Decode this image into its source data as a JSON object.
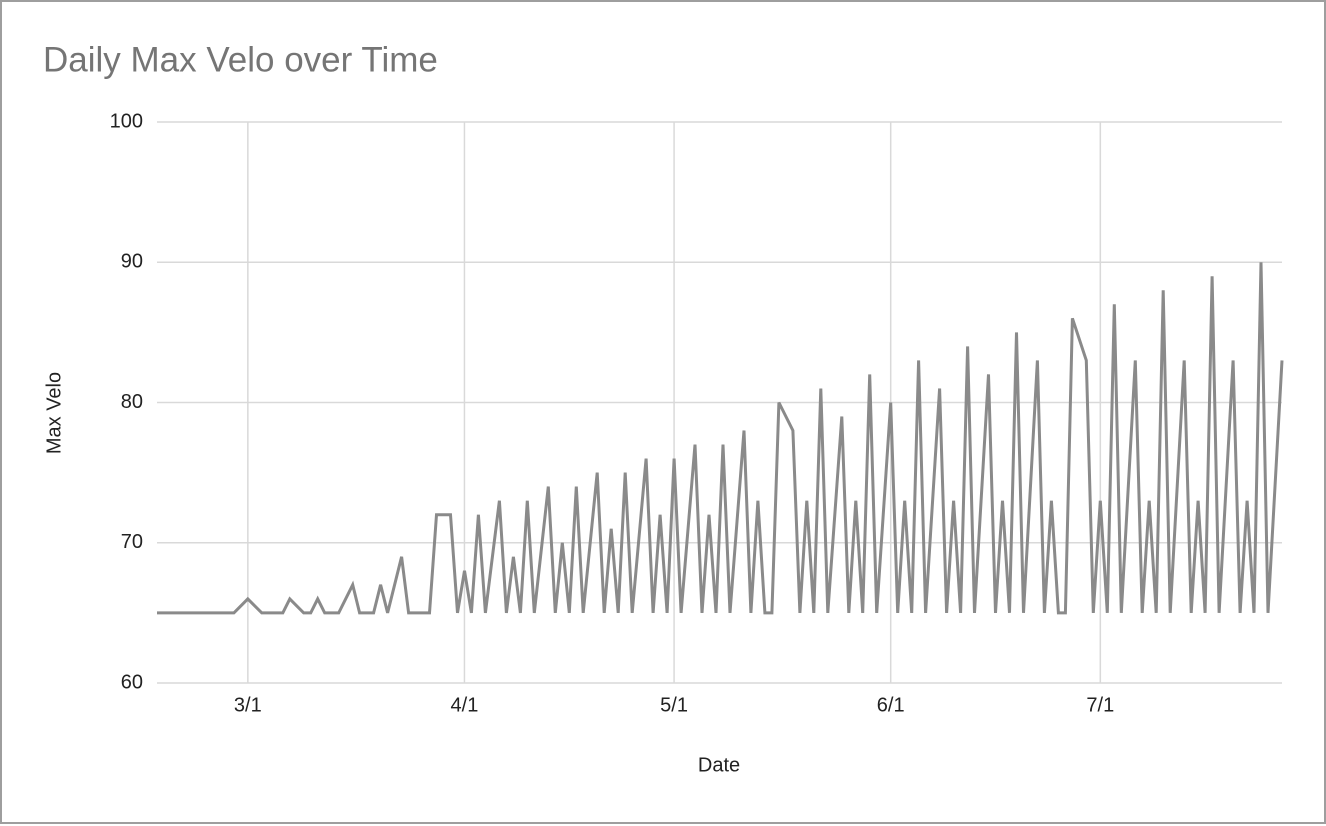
{
  "chart_data": {
    "type": "line",
    "title": "Daily Max Velo over Time",
    "x_label": "Date",
    "y_label": "Max Velo",
    "color": "#8a8a8a",
    "x": [
      "2/16",
      "2/27",
      "3/1",
      "3/3",
      "3/6",
      "3/7",
      "3/9",
      "3/10",
      "3/11",
      "3/12",
      "3/14",
      "3/16",
      "3/17",
      "3/19",
      "3/20",
      "3/21",
      "3/23",
      "3/24",
      "3/27",
      "3/28",
      "3/30",
      "3/31",
      "4/1",
      "4/2",
      "4/3",
      "4/4",
      "4/6",
      "4/7",
      "4/8",
      "4/9",
      "4/10",
      "4/11",
      "4/13",
      "4/14",
      "4/15",
      "4/16",
      "4/17",
      "4/18",
      "4/20",
      "4/21",
      "4/22",
      "4/23",
      "4/24",
      "4/25",
      "4/27",
      "4/28",
      "4/29",
      "4/30",
      "5/1",
      "5/2",
      "5/4",
      "5/5",
      "5/6",
      "5/7",
      "5/8",
      "5/9",
      "5/11",
      "5/12",
      "5/13",
      "5/14",
      "5/15",
      "5/16",
      "5/18",
      "5/19",
      "5/20",
      "5/21",
      "5/22",
      "5/23",
      "5/25",
      "5/26",
      "5/27",
      "5/28",
      "5/29",
      "5/30",
      "6/1",
      "6/2",
      "6/3",
      "6/4",
      "6/5",
      "6/6",
      "6/8",
      "6/9",
      "6/10",
      "6/11",
      "6/12",
      "6/13",
      "6/15",
      "6/16",
      "6/17",
      "6/18",
      "6/19",
      "6/20",
      "6/22",
      "6/23",
      "6/24",
      "6/25",
      "6/26",
      "6/27",
      "6/29",
      "6/30",
      "7/1",
      "7/2",
      "7/3",
      "7/4",
      "7/6",
      "7/7",
      "7/8",
      "7/9",
      "7/10",
      "7/11",
      "7/13",
      "7/14",
      "7/15",
      "7/16",
      "7/17",
      "7/18",
      "7/20",
      "7/21",
      "7/22",
      "7/23",
      "7/24",
      "7/25",
      "7/27"
    ],
    "values": [
      65,
      65,
      66,
      65,
      65,
      66,
      65,
      65,
      66,
      65,
      65,
      67,
      65,
      65,
      67,
      65,
      69,
      65,
      65,
      72,
      72,
      65,
      68,
      65,
      72,
      65,
      73,
      65,
      69,
      65,
      73,
      65,
      74,
      65,
      70,
      65,
      74,
      65,
      75,
      65,
      71,
      65,
      75,
      65,
      76,
      65,
      72,
      65,
      76,
      65,
      77,
      65,
      72,
      65,
      77,
      65,
      78,
      65,
      73,
      65,
      65,
      80,
      78,
      65,
      73,
      65,
      81,
      65,
      79,
      65,
      73,
      65,
      82,
      65,
      80,
      65,
      73,
      65,
      83,
      65,
      81,
      65,
      73,
      65,
      84,
      65,
      82,
      65,
      73,
      65,
      85,
      65,
      83,
      65,
      73,
      65,
      65,
      86,
      83,
      65,
      73,
      65,
      87,
      65,
      83,
      65,
      73,
      65,
      88,
      65,
      83,
      65,
      73,
      65,
      89,
      65,
      83,
      65,
      73,
      65,
      90,
      65,
      83
    ],
    "xlim": [
      "2/16",
      "7/27"
    ],
    "xticks": [
      "3/1",
      "4/1",
      "5/1",
      "6/1",
      "7/1"
    ],
    "ylim": [
      60,
      100
    ],
    "yticks": [
      60,
      70,
      80,
      90,
      100
    ],
    "grid": true
  }
}
